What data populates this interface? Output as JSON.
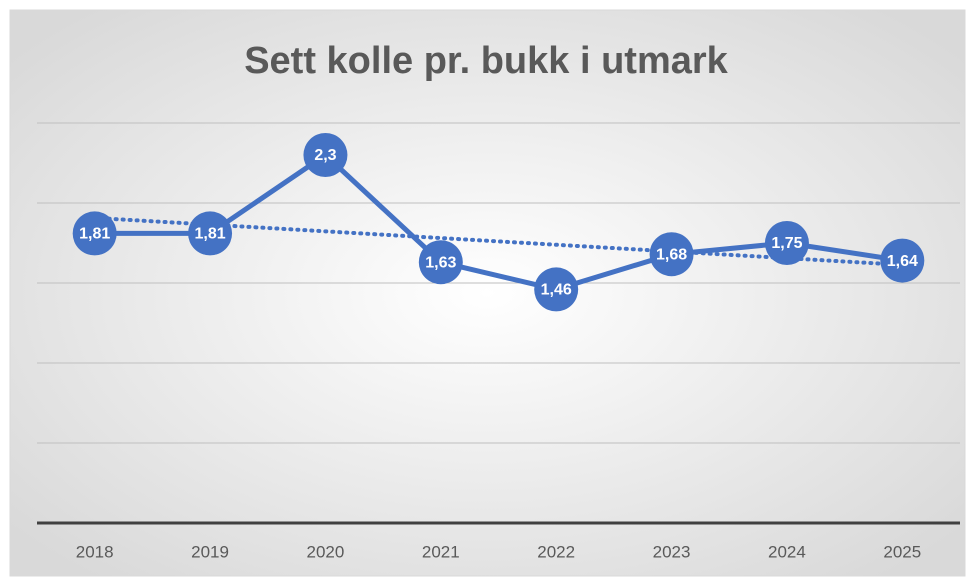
{
  "chart_data": {
    "type": "line",
    "title": "Sett kolle pr. bukk i utmark",
    "categories": [
      "2018",
      "2019",
      "2020",
      "2021",
      "2022",
      "2023",
      "2024",
      "2025"
    ],
    "series": [
      {
        "name": "Sett kolle pr. bukk i utmark",
        "color": "#4472c4",
        "values": [
          1.81,
          1.81,
          2.3,
          1.63,
          1.46,
          1.68,
          1.75,
          1.64
        ],
        "value_labels": [
          "1,81",
          "1,81",
          "2,3",
          "1,63",
          "1,46",
          "1,68",
          "1,75",
          "1,64"
        ]
      }
    ],
    "trendline": "linear",
    "ylim": [
      0,
      2.5
    ],
    "yticks": [
      0,
      0.5,
      1,
      1.5,
      2,
      2.5
    ],
    "grid": true
  }
}
